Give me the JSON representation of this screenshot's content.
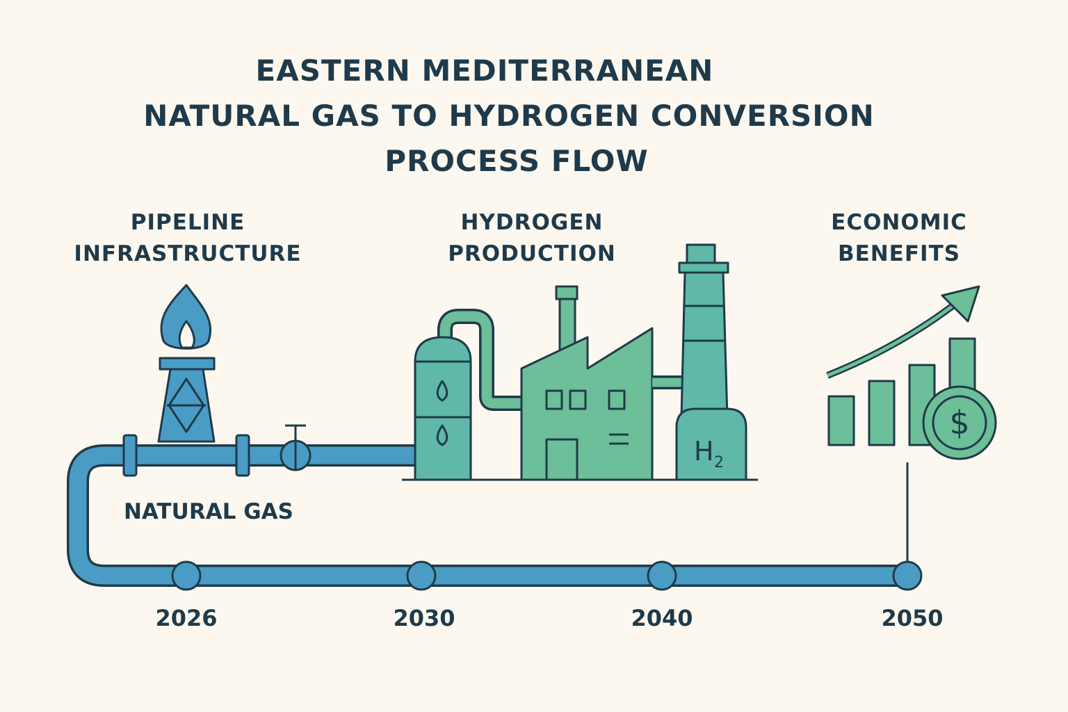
{
  "title": {
    "lines": [
      "EASTERN MEDITERRANEAN",
      "NATURAL GAS TO HYDROGEN CONVERSION",
      "PROCESS FLOW"
    ]
  },
  "stages": [
    {
      "label": [
        "PIPELINE",
        "INFRASTRUCTURE"
      ]
    },
    {
      "label": [
        "HYDROGEN",
        "PRODUCTION"
      ]
    },
    {
      "label": [
        "ECONOMIC",
        "BENEFITS"
      ]
    }
  ],
  "pipeline_label": "NATURAL GAS",
  "storage_label": {
    "symbol": "H",
    "subscript": "2"
  },
  "currency_symbol": "$",
  "timeline": {
    "years": [
      "2026",
      "2030",
      "2040",
      "2050"
    ]
  }
}
